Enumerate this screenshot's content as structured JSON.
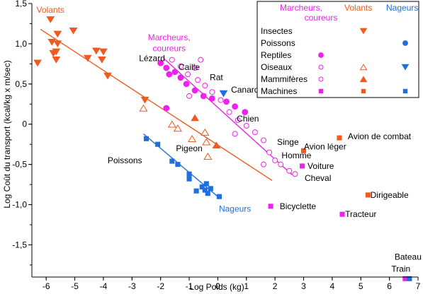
{
  "chart_data": {
    "type": "scatter",
    "xlabel": "Log Poids (kg)",
    "ylabel": "Log Coût du transport (kcal/kg x m/sec)",
    "xlim": [
      -6.5,
      7.0
    ],
    "ylim": [
      -1.9,
      1.5
    ],
    "x_ticks": [
      -6,
      -5,
      -4,
      -3,
      -2,
      -1,
      0,
      1,
      2,
      3,
      4,
      5,
      6,
      7
    ],
    "x_tick_labels": [
      "-6",
      "-5",
      "-4",
      "-3",
      "-2",
      "-1",
      "0",
      "1",
      "2",
      "3",
      "4",
      "5",
      "6",
      "7"
    ],
    "y_ticks": [
      1.5,
      1.0,
      0.5,
      0,
      -0.5,
      -1.0,
      -1.5
    ],
    "y_tick_labels": [
      "1,5",
      "1,0",
      "0,5",
      "0",
      "-0,5",
      "-1,0",
      "-1,5"
    ],
    "grid": false,
    "colors": {
      "volants": "#f05a1e",
      "marcheurs": "#ee22ee",
      "nageurs": "#1e6edc"
    },
    "group_labels": [
      {
        "text": "Volants",
        "x": -5.85,
        "y": 1.42,
        "group": "volants"
      },
      {
        "text": "Marcheurs,",
        "x": -1.7,
        "y": 1.08,
        "group": "marcheurs"
      },
      {
        "text": "coureurs",
        "x": -1.7,
        "y": 0.94,
        "group": "marcheurs"
      },
      {
        "text": "Nageurs",
        "x": 0.6,
        "y": -1.05,
        "group": "nageurs"
      }
    ],
    "series": [
      {
        "category": "Insectes",
        "group": "volants",
        "marker": "triangle-down",
        "points": [
          {
            "x": -6.3,
            "y": 0.76
          },
          {
            "x": -5.85,
            "y": 1.3
          },
          {
            "x": -5.75,
            "y": 0.88
          },
          {
            "x": -5.8,
            "y": 1.02
          },
          {
            "x": -5.6,
            "y": 1.12
          },
          {
            "x": -5.6,
            "y": 1.0
          },
          {
            "x": -5.65,
            "y": 0.9
          },
          {
            "x": -5.65,
            "y": 0.8
          },
          {
            "x": -5.05,
            "y": 1.16
          },
          {
            "x": -4.55,
            "y": 0.82
          },
          {
            "x": -4.25,
            "y": 0.91
          },
          {
            "x": -4.0,
            "y": 0.9
          },
          {
            "x": -4.05,
            "y": 0.8
          },
          {
            "x": -3.85,
            "y": 0.6
          },
          {
            "x": -2.55,
            "y": 0.3
          }
        ]
      },
      {
        "category": "Poissons",
        "group": "nageurs",
        "marker": "square",
        "points": [
          {
            "x": -2.5,
            "y": -0.18
          },
          {
            "x": -2.1,
            "y": -0.25
          },
          {
            "x": -1.6,
            "y": -0.46
          },
          {
            "x": -1.4,
            "y": -0.5
          },
          {
            "x": -1.0,
            "y": -0.62
          },
          {
            "x": -1.0,
            "y": -0.68
          },
          {
            "x": -0.75,
            "y": -0.83
          },
          {
            "x": -0.55,
            "y": -0.78
          },
          {
            "x": -0.45,
            "y": -0.82
          },
          {
            "x": -0.35,
            "y": -0.86
          },
          {
            "x": -0.4,
            "y": -0.74
          },
          {
            "x": -0.25,
            "y": -0.8
          },
          {
            "x": 0.05,
            "y": -0.9
          }
        ]
      },
      {
        "category": "Reptiles",
        "group": "marcheurs",
        "marker": "circle",
        "points": [
          {
            "x": -2.0,
            "y": 0.76
          },
          {
            "x": -1.8,
            "y": 0.7
          },
          {
            "x": -1.7,
            "y": 0.62
          },
          {
            "x": -1.5,
            "y": 0.65
          },
          {
            "x": -1.3,
            "y": 0.58
          },
          {
            "x": -1.1,
            "y": 0.5
          },
          {
            "x": -0.8,
            "y": 0.42
          },
          {
            "x": -0.5,
            "y": 0.35
          },
          {
            "x": -0.2,
            "y": 0.32
          },
          {
            "x": 0.3,
            "y": 0.28
          },
          {
            "x": 0.6,
            "y": 0.22
          },
          {
            "x": 0.95,
            "y": 0.15
          },
          {
            "x": -1.8,
            "y": 0.2
          }
        ]
      },
      {
        "category": "Oiseaux",
        "group": "marcheurs",
        "marker": "circle-open",
        "points": [
          {
            "x": -1.6,
            "y": 0.8
          },
          {
            "x": -1.3,
            "y": 0.72
          },
          {
            "x": -1.05,
            "y": 0.62
          },
          {
            "x": -0.8,
            "y": 0.7
          },
          {
            "x": -0.6,
            "y": 0.8
          },
          {
            "x": -0.7,
            "y": 0.55
          },
          {
            "x": -0.45,
            "y": 0.48
          },
          {
            "x": -0.2,
            "y": 0.4
          },
          {
            "x": 0.1,
            "y": 0.3
          },
          {
            "x": 0.4,
            "y": 0.15
          },
          {
            "x": 0.7,
            "y": 0.05
          },
          {
            "x": 1.0,
            "y": -0.02
          },
          {
            "x": 1.3,
            "y": -0.1
          },
          {
            "x": 1.6,
            "y": -0.2
          },
          {
            "x": 1.8,
            "y": -0.35
          },
          {
            "x": 2.0,
            "y": -0.45
          },
          {
            "x": 2.2,
            "y": -0.5
          },
          {
            "x": 2.5,
            "y": -0.58
          },
          {
            "x": 2.7,
            "y": -0.62
          },
          {
            "x": 0.6,
            "y": -0.12
          },
          {
            "x": 1.6,
            "y": -0.5
          },
          {
            "x": -1.0,
            "y": 0.35
          }
        ]
      },
      {
        "category": "Mammifères",
        "group": "volants",
        "marker": "triangle-up-open",
        "points": [
          {
            "x": -2.6,
            "y": 0.2
          },
          {
            "x": -1.6,
            "y": 0.0
          },
          {
            "x": -1.4,
            "y": -0.05
          },
          {
            "x": -0.9,
            "y": -0.18
          },
          {
            "x": -0.45,
            "y": -0.1
          },
          {
            "x": -0.4,
            "y": -0.22
          },
          {
            "x": -0.35,
            "y": -0.4
          }
        ]
      },
      {
        "category": "Mammifères",
        "group": "volants",
        "marker": "triangle-up",
        "points": [
          {
            "x": -0.8,
            "y": 0.08
          },
          {
            "x": -0.05,
            "y": -0.26
          }
        ]
      },
      {
        "category": "Oiseaux",
        "group": "nageurs",
        "marker": "triangle-down",
        "points": [
          {
            "x": 0.2,
            "y": 0.38
          }
        ]
      },
      {
        "category": "Machines",
        "group": "marcheurs",
        "marker": "square",
        "points": [
          {
            "x": 1.85,
            "y": -1.02
          },
          {
            "x": 2.95,
            "y": -0.52
          },
          {
            "x": 4.35,
            "y": -1.12
          },
          {
            "x": 6.55,
            "y": -1.92
          }
        ]
      },
      {
        "category": "Machines",
        "group": "volants",
        "marker": "square",
        "points": [
          {
            "x": 3.0,
            "y": -0.33
          },
          {
            "x": 4.25,
            "y": -0.17
          },
          {
            "x": 5.25,
            "y": -0.88
          }
        ]
      },
      {
        "category": "Machines",
        "group": "nageurs",
        "marker": "square",
        "points": [
          {
            "x": 6.7,
            "y": -1.92
          }
        ]
      }
    ],
    "fit_lines": [
      {
        "group": "volants",
        "x": [
          -6.2,
          1.9
        ],
        "y": [
          1.18,
          -0.7
        ]
      },
      {
        "group": "marcheurs",
        "x": [
          -1.9,
          2.6
        ],
        "y": [
          0.82,
          -0.63
        ]
      },
      {
        "group": "nageurs",
        "x": [
          -2.6,
          0.0
        ],
        "y": [
          -0.12,
          -0.9
        ]
      }
    ],
    "annotations": [
      {
        "text": "Lézard",
        "x": -2.3,
        "y": 0.82
      },
      {
        "text": "Caille",
        "x": -1.0,
        "y": 0.71
      },
      {
        "text": "Rat",
        "x": -0.05,
        "y": 0.58
      },
      {
        "text": "Canard",
        "x": 0.95,
        "y": 0.43
      },
      {
        "text": "Chien",
        "x": 1.05,
        "y": 0.07
      },
      {
        "text": "Singe",
        "x": 2.45,
        "y": -0.22
      },
      {
        "text": "Homme",
        "x": 2.75,
        "y": -0.39
      },
      {
        "text": "Avion léger",
        "x": 3.75,
        "y": -0.28
      },
      {
        "text": "Avion de combat",
        "x": 5.65,
        "y": -0.15
      },
      {
        "text": "Voiture",
        "x": 3.6,
        "y": -0.52
      },
      {
        "text": "Cheval",
        "x": 3.5,
        "y": -0.67
      },
      {
        "text": "Pigeon",
        "x": -1.0,
        "y": -0.3
      },
      {
        "text": "Poissons",
        "x": -3.25,
        "y": -0.45
      },
      {
        "text": "Dirigeable",
        "x": 6.0,
        "y": -0.88
      },
      {
        "text": "Bicyclette",
        "x": 2.8,
        "y": -1.02
      },
      {
        "text": "Tracteur",
        "x": 5.0,
        "y": -1.12
      },
      {
        "text": "Train",
        "x": 6.4,
        "y": -1.8
      },
      {
        "text": "Bateau",
        "x": 6.65,
        "y": -1.65
      }
    ],
    "legend": {
      "placement": "top-right",
      "column_headers": [
        {
          "text": "Volants",
          "group": "volants"
        },
        {
          "text": "Marcheurs,",
          "group": "marcheurs"
        },
        {
          "text": "coureurs",
          "group": "marcheurs"
        },
        {
          "text": "Nageurs",
          "group": "nageurs"
        }
      ],
      "rows": [
        {
          "label": "Insectes",
          "markers": [
            {
              "col": "volants",
              "marker": "triangle-down"
            }
          ]
        },
        {
          "label": "Poissons",
          "markers": [
            {
              "col": "nageurs",
              "marker": "circle"
            }
          ]
        },
        {
          "label": "Reptiles",
          "markers": [
            {
              "col": "marcheurs",
              "marker": "circle"
            }
          ]
        },
        {
          "label": "Oiseaux",
          "markers": [
            {
              "col": "marcheurs",
              "marker": "circle-open"
            },
            {
              "col": "volants",
              "marker": "triangle-up-open"
            },
            {
              "col": "nageurs",
              "marker": "triangle-down"
            }
          ]
        },
        {
          "label": "Mammifères",
          "markers": [
            {
              "col": "marcheurs",
              "marker": "circle-open"
            },
            {
              "col": "volants",
              "marker": "triangle-up"
            }
          ]
        },
        {
          "label": "Machines",
          "markers": [
            {
              "col": "marcheurs",
              "marker": "square"
            },
            {
              "col": "volants",
              "marker": "square"
            },
            {
              "col": "nageurs",
              "marker": "square"
            }
          ]
        }
      ]
    }
  }
}
